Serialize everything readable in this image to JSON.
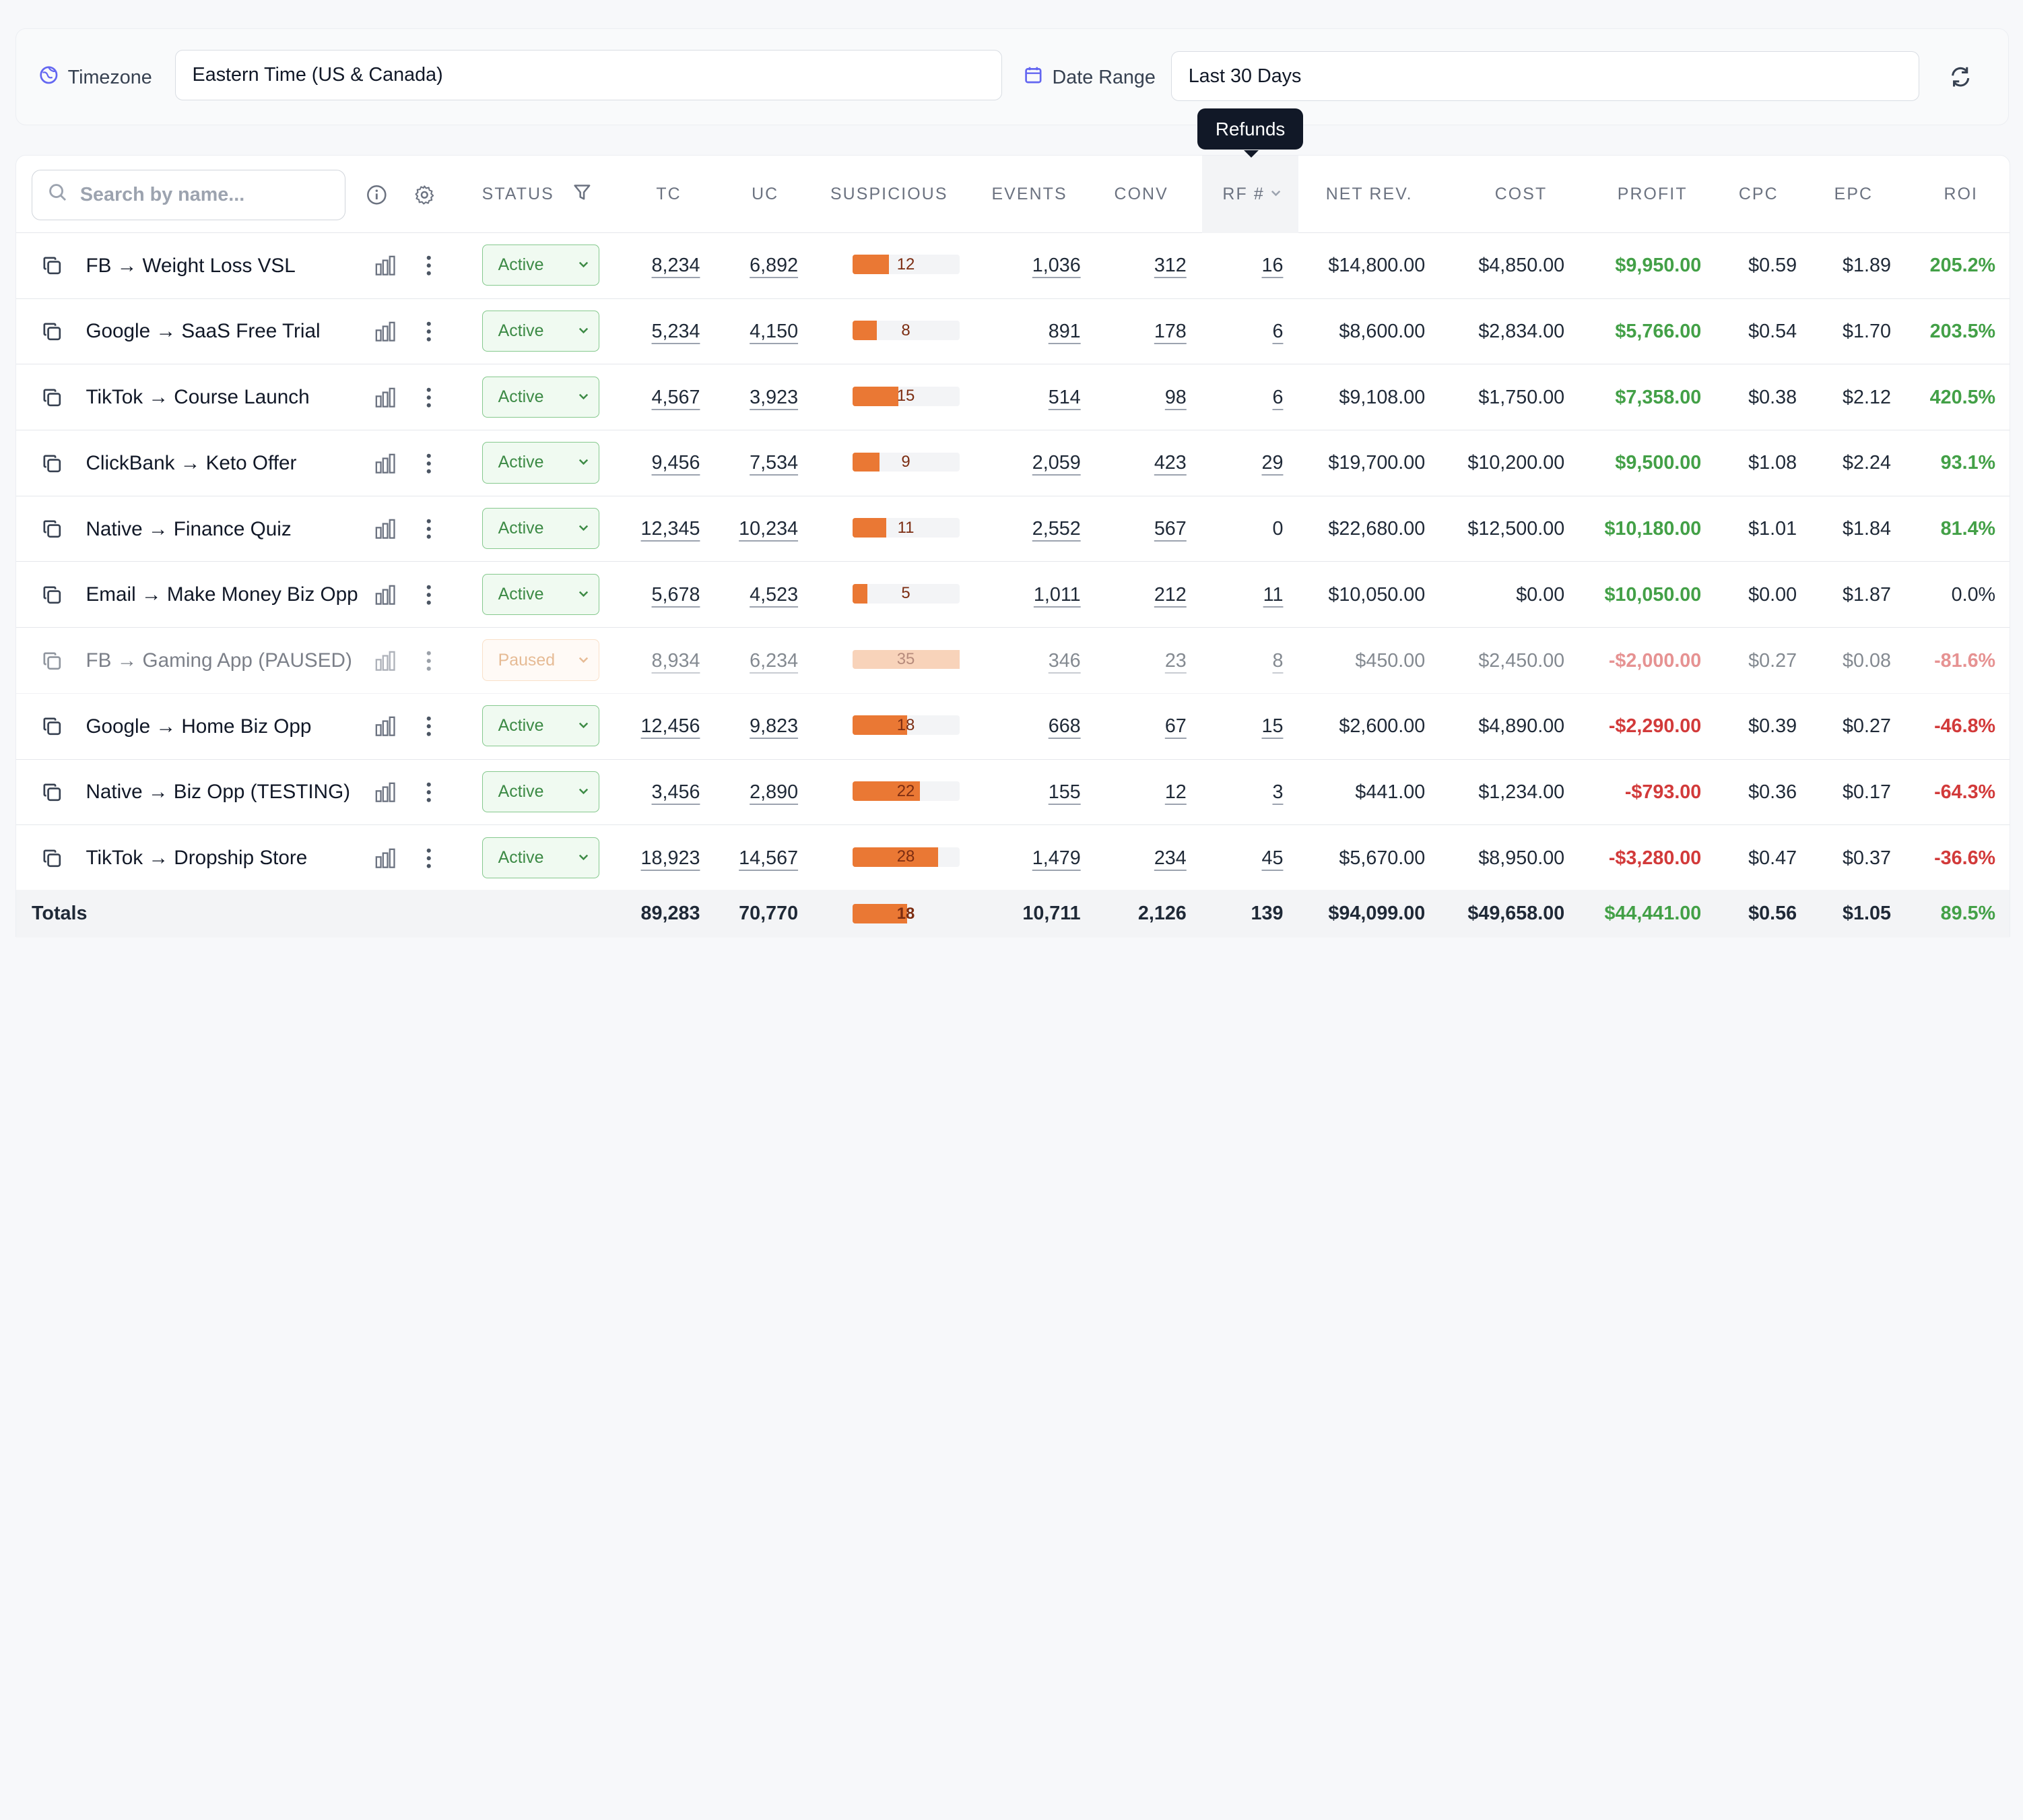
{
  "toolbar": {
    "timezone_label": "Timezone",
    "timezone_value": "Eastern Time (US & Canada)",
    "date_range_label": "Date Range",
    "date_range_value": "Last 30 Days"
  },
  "tooltip": "Refunds",
  "search": {
    "placeholder": "Search by name..."
  },
  "columns": {
    "status": "STATUS",
    "tc": "TC",
    "uc": "UC",
    "suspicious": "SUSPICIOUS",
    "events": "EVENTS",
    "conv": "CONV",
    "rf": "RF #",
    "net_rev": "NET REV.",
    "cost": "COST",
    "profit": "PROFIT",
    "cpc": "CPC",
    "epc": "EPC",
    "roi": "ROI"
  },
  "colors": {
    "active": "#3c8a45",
    "paused": "#d3843f",
    "positive": "#43a047",
    "negative": "#d23a3a",
    "suspicious_bar": "#ea7834"
  },
  "rows": [
    {
      "name": "FB → Weight Loss VSL",
      "status": "Active",
      "tc": "8,234",
      "uc": "6,892",
      "suspicious": "12",
      "events": "1,036",
      "conv": "312",
      "rf": "16",
      "net_rev": "$14,800.00",
      "cost": "$4,850.00",
      "profit": "$9,950.00",
      "cpc": "$0.59",
      "epc": "$1.89",
      "roi": "205.2%",
      "trend": "positive",
      "paused": false
    },
    {
      "name": "Google → SaaS Free Trial",
      "status": "Active",
      "tc": "5,234",
      "uc": "4,150",
      "suspicious": "8",
      "events": "891",
      "conv": "178",
      "rf": "6",
      "net_rev": "$8,600.00",
      "cost": "$2,834.00",
      "profit": "$5,766.00",
      "cpc": "$0.54",
      "epc": "$1.70",
      "roi": "203.5%",
      "trend": "positive",
      "paused": false
    },
    {
      "name": "TikTok → Course Launch",
      "status": "Active",
      "tc": "4,567",
      "uc": "3,923",
      "suspicious": "15",
      "events": "514",
      "conv": "98",
      "rf": "6",
      "net_rev": "$9,108.00",
      "cost": "$1,750.00",
      "profit": "$7,358.00",
      "cpc": "$0.38",
      "epc": "$2.12",
      "roi": "420.5%",
      "trend": "positive",
      "paused": false
    },
    {
      "name": "ClickBank → Keto Offer",
      "status": "Active",
      "tc": "9,456",
      "uc": "7,534",
      "suspicious": "9",
      "events": "2,059",
      "conv": "423",
      "rf": "29",
      "net_rev": "$19,700.00",
      "cost": "$10,200.00",
      "profit": "$9,500.00",
      "cpc": "$1.08",
      "epc": "$2.24",
      "roi": "93.1%",
      "trend": "positive",
      "paused": false
    },
    {
      "name": "Native → Finance Quiz",
      "status": "Active",
      "tc": "12,345",
      "uc": "10,234",
      "suspicious": "11",
      "events": "2,552",
      "conv": "567",
      "rf": "0",
      "net_rev": "$22,680.00",
      "cost": "$12,500.00",
      "profit": "$10,180.00",
      "cpc": "$1.01",
      "epc": "$1.84",
      "roi": "81.4%",
      "trend": "positive",
      "paused": false,
      "rf_plain": true
    },
    {
      "name": "Email → Make Money Biz Opp",
      "status": "Active",
      "tc": "5,678",
      "uc": "4,523",
      "suspicious": "5",
      "events": "1,011",
      "conv": "212",
      "rf": "11",
      "net_rev": "$10,050.00",
      "cost": "$0.00",
      "profit": "$10,050.00",
      "cpc": "$0.00",
      "epc": "$1.87",
      "roi": "0.0%",
      "trend": "positive",
      "paused": false,
      "roi_neutral": true
    },
    {
      "name": "FB → Gaming App (PAUSED)",
      "status": "Paused",
      "tc": "8,934",
      "uc": "6,234",
      "suspicious": "35",
      "events": "346",
      "conv": "23",
      "rf": "8",
      "net_rev": "$450.00",
      "cost": "$2,450.00",
      "profit": "-$2,000.00",
      "cpc": "$0.27",
      "epc": "$0.08",
      "roi": "-81.6%",
      "trend": "negative",
      "paused": true
    },
    {
      "name": "Google → Home Biz Opp",
      "status": "Active",
      "tc": "12,456",
      "uc": "9,823",
      "suspicious": "18",
      "events": "668",
      "conv": "67",
      "rf": "15",
      "net_rev": "$2,600.00",
      "cost": "$4,890.00",
      "profit": "-$2,290.00",
      "cpc": "$0.39",
      "epc": "$0.27",
      "roi": "-46.8%",
      "trend": "negative",
      "paused": false
    },
    {
      "name": "Native → Biz Opp (TESTING)",
      "status": "Active",
      "tc": "3,456",
      "uc": "2,890",
      "suspicious": "22",
      "events": "155",
      "conv": "12",
      "rf": "3",
      "net_rev": "$441.00",
      "cost": "$1,234.00",
      "profit": "-$793.00",
      "cpc": "$0.36",
      "epc": "$0.17",
      "roi": "-64.3%",
      "trend": "negative",
      "paused": false
    },
    {
      "name": "TikTok → Dropship Store",
      "status": "Active",
      "tc": "18,923",
      "uc": "14,567",
      "suspicious": "28",
      "events": "1,479",
      "conv": "234",
      "rf": "45",
      "net_rev": "$5,670.00",
      "cost": "$8,950.00",
      "profit": "-$3,280.00",
      "cpc": "$0.47",
      "epc": "$0.37",
      "roi": "-36.6%",
      "trend": "negative",
      "paused": false
    }
  ],
  "totals": {
    "label": "Totals",
    "tc": "89,283",
    "uc": "70,770",
    "suspicious": "18",
    "events": "10,711",
    "conv": "2,126",
    "rf": "139",
    "net_rev": "$94,099.00",
    "cost": "$49,658.00",
    "profit": "$44,441.00",
    "cpc": "$0.56",
    "epc": "$1.05",
    "roi": "89.5%"
  }
}
